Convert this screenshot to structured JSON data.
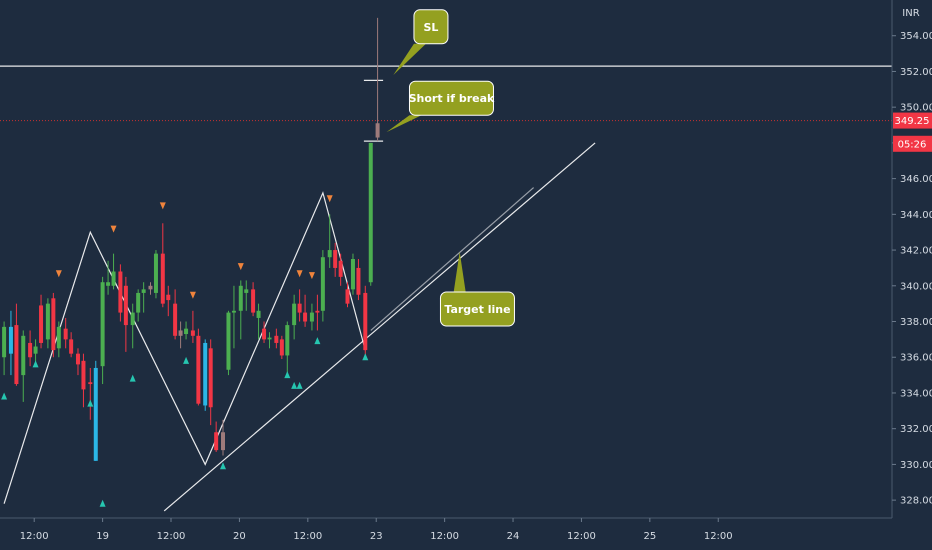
{
  "currency": "INR",
  "colors": {
    "background": "#1e2c3f",
    "up": "#4caf50",
    "down": "#f23645",
    "blue": "#2bb7e6",
    "neutral": "#9e7b7b",
    "marker_up": "#26c6b0",
    "marker_down": "#f0843c",
    "callout_bg": "#94a020",
    "price_badge": "#f23645",
    "price_line": "#c83030",
    "line": "#ffffff"
  },
  "chart_data": {
    "type": "candlestick",
    "title": "",
    "xlabel": "",
    "ylabel": "",
    "ylim": [
      327,
      356
    ],
    "xlim": [
      0,
      13.04
    ],
    "y_ticks": [
      "328.00",
      "330.00",
      "332.00",
      "334.00",
      "336.00",
      "338.00",
      "340.00",
      "342.00",
      "344.00",
      "346.00",
      "348.00",
      "350.00",
      "352.00",
      "354.00"
    ],
    "x_ticks": [
      {
        "label": "12:00",
        "t": 0.5
      },
      {
        "label": "19",
        "t": 1.5
      },
      {
        "label": "12:00",
        "t": 2.5
      },
      {
        "label": "20",
        "t": 3.5
      },
      {
        "label": "12:00",
        "t": 4.5
      },
      {
        "label": "23",
        "t": 5.5
      },
      {
        "label": "12:00",
        "t": 6.5
      },
      {
        "label": "24",
        "t": 7.5
      },
      {
        "label": "12:00",
        "t": 8.5
      },
      {
        "label": "25",
        "t": 9.5
      },
      {
        "label": "12:00",
        "t": 10.5
      }
    ],
    "candles": [
      {
        "t": 0.06,
        "o": 336.0,
        "h": 338.0,
        "l": 335.0,
        "c": 337.7,
        "color": "up"
      },
      {
        "t": 0.16,
        "o": 337.7,
        "h": 338.6,
        "l": 335.0,
        "c": 336.2,
        "color": "blue"
      },
      {
        "t": 0.24,
        "o": 337.8,
        "h": 339.0,
        "l": 334.4,
        "c": 334.5,
        "color": "down"
      },
      {
        "t": 0.34,
        "o": 335.0,
        "h": 337.5,
        "l": 333.5,
        "c": 337.2,
        "color": "up"
      },
      {
        "t": 0.44,
        "o": 336.8,
        "h": 337.5,
        "l": 335.5,
        "c": 336.0,
        "color": "down"
      },
      {
        "t": 0.52,
        "o": 336.6,
        "h": 337.0,
        "l": 335.5,
        "c": 336.2,
        "color": "up"
      },
      {
        "t": 0.6,
        "o": 338.9,
        "h": 339.5,
        "l": 336.5,
        "c": 336.8,
        "color": "down"
      },
      {
        "t": 0.7,
        "o": 337.0,
        "h": 339.3,
        "l": 336.5,
        "c": 339.0,
        "color": "up"
      },
      {
        "t": 0.78,
        "o": 339.3,
        "h": 339.6,
        "l": 336.0,
        "c": 336.4,
        "color": "down"
      },
      {
        "t": 0.86,
        "o": 336.5,
        "h": 338.0,
        "l": 336.0,
        "c": 337.7,
        "color": "up"
      },
      {
        "t": 0.96,
        "o": 337.6,
        "h": 338.2,
        "l": 336.5,
        "c": 337.0,
        "color": "down"
      },
      {
        "t": 1.04,
        "o": 337.0,
        "h": 337.4,
        "l": 336.0,
        "c": 336.2,
        "color": "down"
      },
      {
        "t": 1.14,
        "o": 336.2,
        "h": 336.5,
        "l": 335.0,
        "c": 335.6,
        "color": "down"
      },
      {
        "t": 1.22,
        "o": 335.8,
        "h": 336.2,
        "l": 333.2,
        "c": 334.2,
        "color": "down"
      },
      {
        "t": 1.32,
        "o": 334.6,
        "h": 335.4,
        "l": 332.5,
        "c": 334.5,
        "color": "down"
      },
      {
        "t": 1.4,
        "o": 335.4,
        "h": 335.8,
        "l": 330.2,
        "c": 330.2,
        "color": "blue"
      },
      {
        "t": 1.5,
        "o": 335.5,
        "h": 340.5,
        "l": 334.5,
        "c": 340.2,
        "color": "up"
      },
      {
        "t": 1.58,
        "o": 340.2,
        "h": 341.4,
        "l": 339.5,
        "c": 340.0,
        "color": "up"
      },
      {
        "t": 1.66,
        "o": 340.0,
        "h": 341.8,
        "l": 339.8,
        "c": 340.8,
        "color": "up"
      },
      {
        "t": 1.76,
        "o": 340.8,
        "h": 341.2,
        "l": 338.0,
        "c": 338.5,
        "color": "down"
      },
      {
        "t": 1.84,
        "o": 340.0,
        "h": 340.5,
        "l": 336.3,
        "c": 337.8,
        "color": "down"
      },
      {
        "t": 1.94,
        "o": 337.8,
        "h": 339.0,
        "l": 336.5,
        "c": 338.5,
        "color": "up"
      },
      {
        "t": 2.02,
        "o": 338.5,
        "h": 339.8,
        "l": 338.0,
        "c": 339.6,
        "color": "up"
      },
      {
        "t": 2.1,
        "o": 339.6,
        "h": 340.2,
        "l": 338.5,
        "c": 339.8,
        "color": "up"
      },
      {
        "t": 2.2,
        "o": 339.8,
        "h": 340.2,
        "l": 339.5,
        "c": 340.0,
        "color": "neutral"
      },
      {
        "t": 2.28,
        "o": 339.6,
        "h": 342.0,
        "l": 339.3,
        "c": 341.8,
        "color": "up"
      },
      {
        "t": 2.38,
        "o": 341.8,
        "h": 343.5,
        "l": 338.8,
        "c": 339.0,
        "color": "down"
      },
      {
        "t": 2.46,
        "o": 339.5,
        "h": 340.0,
        "l": 338.3,
        "c": 339.2,
        "color": "down"
      },
      {
        "t": 2.56,
        "o": 339.0,
        "h": 339.8,
        "l": 337.0,
        "c": 337.2,
        "color": "down"
      },
      {
        "t": 2.64,
        "o": 337.2,
        "h": 338.0,
        "l": 336.5,
        "c": 337.5,
        "color": "neutral"
      },
      {
        "t": 2.72,
        "o": 337.3,
        "h": 338.0,
        "l": 337.0,
        "c": 337.6,
        "color": "up"
      },
      {
        "t": 2.82,
        "o": 337.5,
        "h": 338.6,
        "l": 336.8,
        "c": 337.2,
        "color": "down"
      },
      {
        "t": 2.9,
        "o": 337.2,
        "h": 337.6,
        "l": 333.3,
        "c": 333.4,
        "color": "down"
      },
      {
        "t": 3.0,
        "o": 333.3,
        "h": 337.0,
        "l": 333.0,
        "c": 336.8,
        "color": "blue"
      },
      {
        "t": 3.08,
        "o": 336.5,
        "h": 337.0,
        "l": 332.2,
        "c": 333.2,
        "color": "down"
      },
      {
        "t": 3.16,
        "o": 331.8,
        "h": 332.4,
        "l": 330.7,
        "c": 330.8,
        "color": "down"
      },
      {
        "t": 3.26,
        "o": 330.8,
        "h": 332.5,
        "l": 330.5,
        "c": 331.8,
        "color": "neutral"
      },
      {
        "t": 3.34,
        "o": 335.3,
        "h": 338.6,
        "l": 335.0,
        "c": 338.5,
        "color": "up"
      },
      {
        "t": 3.42,
        "o": 338.5,
        "h": 340.0,
        "l": 336.5,
        "c": 338.6,
        "color": "up"
      },
      {
        "t": 3.52,
        "o": 338.6,
        "h": 340.3,
        "l": 337.0,
        "c": 340.0,
        "color": "up"
      },
      {
        "t": 3.6,
        "o": 339.6,
        "h": 340.3,
        "l": 338.6,
        "c": 339.8,
        "color": "up"
      },
      {
        "t": 3.7,
        "o": 339.8,
        "h": 340.2,
        "l": 338.3,
        "c": 338.5,
        "color": "down"
      },
      {
        "t": 3.78,
        "o": 338.2,
        "h": 339.0,
        "l": 337.0,
        "c": 338.6,
        "color": "up"
      },
      {
        "t": 3.86,
        "o": 337.6,
        "h": 338.0,
        "l": 336.8,
        "c": 337.0,
        "color": "down"
      },
      {
        "t": 3.94,
        "o": 337.0,
        "h": 337.4,
        "l": 336.5,
        "c": 337.1,
        "color": "up"
      },
      {
        "t": 4.04,
        "o": 337.2,
        "h": 337.6,
        "l": 336.5,
        "c": 336.8,
        "color": "down"
      },
      {
        "t": 4.12,
        "o": 337.0,
        "h": 337.2,
        "l": 335.9,
        "c": 336.1,
        "color": "down"
      },
      {
        "t": 4.2,
        "o": 336.1,
        "h": 338.0,
        "l": 335.0,
        "c": 337.8,
        "color": "up"
      },
      {
        "t": 4.3,
        "o": 337.8,
        "h": 339.5,
        "l": 337.0,
        "c": 339.0,
        "color": "up"
      },
      {
        "t": 4.38,
        "o": 339.0,
        "h": 339.8,
        "l": 338.0,
        "c": 338.5,
        "color": "down"
      },
      {
        "t": 4.46,
        "o": 338.5,
        "h": 339.5,
        "l": 337.7,
        "c": 338.0,
        "color": "down"
      },
      {
        "t": 4.56,
        "o": 338.0,
        "h": 339.0,
        "l": 337.5,
        "c": 338.5,
        "color": "up"
      },
      {
        "t": 4.64,
        "o": 338.5,
        "h": 339.5,
        "l": 337.5,
        "c": 338.6,
        "color": "down"
      },
      {
        "t": 4.72,
        "o": 338.6,
        "h": 342.0,
        "l": 338.0,
        "c": 341.6,
        "color": "up"
      },
      {
        "t": 4.82,
        "o": 341.6,
        "h": 344.0,
        "l": 341.0,
        "c": 342.0,
        "color": "up"
      },
      {
        "t": 4.9,
        "o": 342.0,
        "h": 342.4,
        "l": 340.5,
        "c": 341.0,
        "color": "down"
      },
      {
        "t": 4.98,
        "o": 341.4,
        "h": 341.8,
        "l": 340.0,
        "c": 340.5,
        "color": "down"
      },
      {
        "t": 5.08,
        "o": 339.8,
        "h": 340.2,
        "l": 338.8,
        "c": 339.0,
        "color": "down"
      },
      {
        "t": 5.16,
        "o": 339.8,
        "h": 341.8,
        "l": 339.5,
        "c": 341.5,
        "color": "up"
      },
      {
        "t": 5.24,
        "o": 341.0,
        "h": 341.5,
        "l": 339.2,
        "c": 339.5,
        "color": "down"
      },
      {
        "t": 5.34,
        "o": 339.6,
        "h": 340.0,
        "l": 336.1,
        "c": 336.4,
        "color": "down"
      },
      {
        "t": 5.42,
        "o": 340.2,
        "h": 348.0,
        "l": 340.0,
        "c": 348.0,
        "color": "up"
      },
      {
        "t": 5.52,
        "o": 348.3,
        "h": 355.0,
        "l": 348.1,
        "c": 349.1,
        "color": "neutral"
      }
    ],
    "arrows_up": [
      {
        "t": 0.06,
        "p": 333.8
      },
      {
        "t": 0.52,
        "p": 335.6
      },
      {
        "t": 1.32,
        "p": 333.4
      },
      {
        "t": 1.5,
        "p": 327.8
      },
      {
        "t": 1.94,
        "p": 334.8
      },
      {
        "t": 2.72,
        "p": 335.8
      },
      {
        "t": 3.26,
        "p": 329.9
      },
      {
        "t": 4.2,
        "p": 335.0
      },
      {
        "t": 4.3,
        "p": 334.4
      },
      {
        "t": 4.38,
        "p": 334.4
      },
      {
        "t": 4.64,
        "p": 336.9
      },
      {
        "t": 5.34,
        "p": 336.0
      }
    ],
    "arrows_down": [
      {
        "t": 0.86,
        "p": 340.7
      },
      {
        "t": 1.66,
        "p": 343.2
      },
      {
        "t": 2.38,
        "p": 344.5
      },
      {
        "t": 2.82,
        "p": 339.5
      },
      {
        "t": 3.52,
        "p": 341.1
      },
      {
        "t": 4.38,
        "p": 340.7
      },
      {
        "t": 4.56,
        "p": 340.6
      },
      {
        "t": 4.82,
        "p": 344.9
      }
    ],
    "lines": [
      {
        "name": "zigzag",
        "points": [
          [
            0.06,
            327.8
          ],
          [
            1.32,
            343.0
          ],
          [
            3.0,
            330.0
          ],
          [
            4.72,
            345.2
          ],
          [
            5.34,
            336.4
          ]
        ]
      },
      {
        "name": "trendline-main",
        "points": [
          [
            2.4,
            327.4
          ],
          [
            8.7,
            348.0
          ]
        ]
      },
      {
        "name": "trendline-secondary",
        "points": [
          [
            5.42,
            337.5
          ],
          [
            7.8,
            345.5
          ]
        ]
      },
      {
        "name": "sl-line",
        "points": [
          [
            0.0,
            352.3
          ],
          [
            13.04,
            352.3
          ]
        ]
      },
      {
        "name": "sl-level",
        "points": [
          [
            5.32,
            351.5
          ],
          [
            5.6,
            351.5
          ]
        ]
      },
      {
        "name": "entry-level",
        "points": [
          [
            5.32,
            348.1
          ],
          [
            5.6,
            348.1
          ]
        ]
      }
    ],
    "price_line": 349.25,
    "annotations": [
      {
        "text": "SL",
        "t": 6.3,
        "p": 354.5,
        "anchor_t": 5.75,
        "anchor_p": 351.8
      },
      {
        "text": "Short if break",
        "t": 6.6,
        "p": 350.5,
        "anchor_t": 5.65,
        "anchor_p": 348.6
      },
      {
        "text": "Target line",
        "t": 6.98,
        "p": 338.7,
        "anchor_t": 6.72,
        "anchor_p": 341.9
      }
    ],
    "price_badges": [
      {
        "text": "349.25",
        "p": 349.25
      },
      {
        "text": "05:26",
        "p": 347.95
      }
    ]
  }
}
